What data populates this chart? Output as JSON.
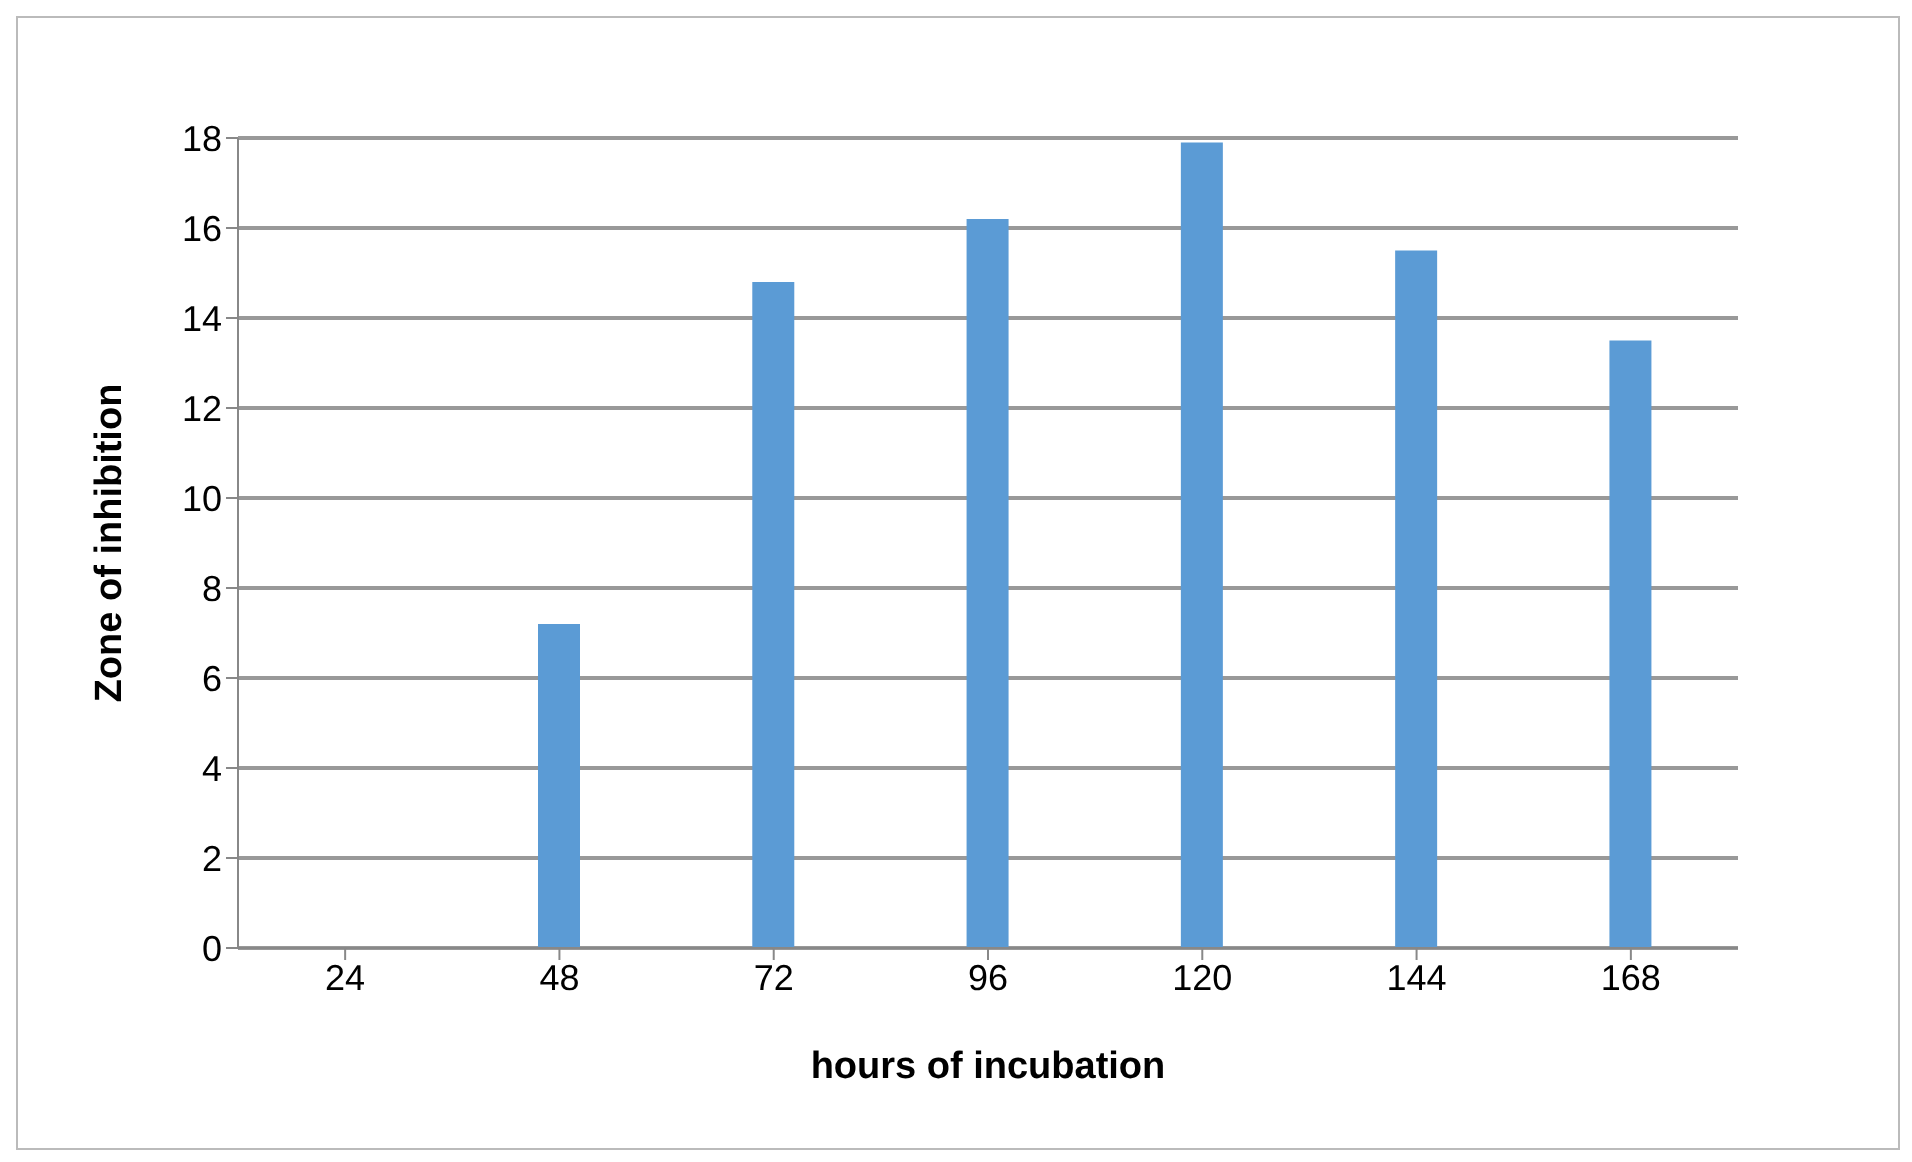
{
  "chart_data": {
    "type": "bar",
    "xlabel": "hours of incubation",
    "ylabel": "Zone of inhibition",
    "categories": [
      "24",
      "48",
      "72",
      "96",
      "120",
      "144",
      "168"
    ],
    "values": [
      0,
      7.2,
      14.8,
      16.2,
      17.9,
      15.5,
      13.5
    ],
    "color": "#5b9bd5",
    "ylim": [
      0,
      18
    ],
    "yticks": [
      0,
      2,
      4,
      6,
      8,
      10,
      12,
      14,
      16,
      18
    ],
    "grid": "y"
  }
}
